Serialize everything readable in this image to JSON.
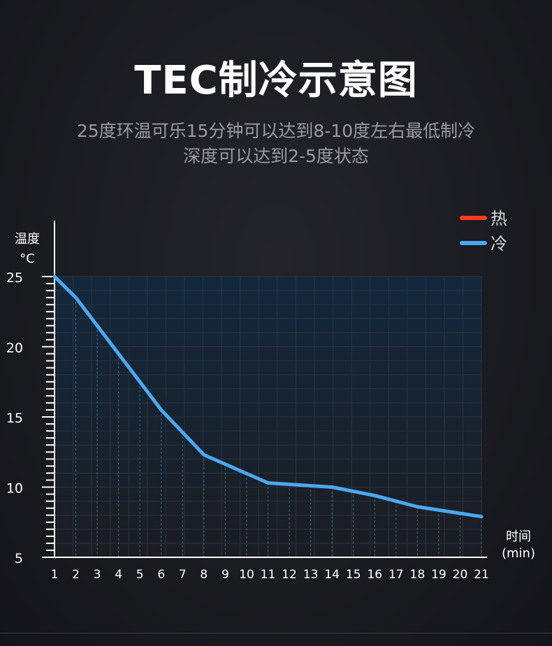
{
  "header": {
    "title": "TEC制冷示意图",
    "subtitle_line1": "25度环温可乐15分钟可以达到8-10度左右最低制冷",
    "subtitle_line2": "深度可以达到2-5度状态"
  },
  "colors": {
    "hot": "#ff3b1f",
    "cold": "#4aa8f0",
    "axis": "#ffffff",
    "grid": "#2c3440",
    "plot_bg_top": "#13283d",
    "plot_bg_bottom": "#1b1d22"
  },
  "chart_data": {
    "type": "line",
    "ylabel_line1": "温度",
    "ylabel_line2": "°C",
    "xlabel_line1": "时间",
    "xlabel_line2": "(min)",
    "ylim": [
      5,
      25
    ],
    "xlim": [
      1,
      21
    ],
    "y_ticks": [
      25,
      20,
      15,
      10,
      5
    ],
    "x_ticks": [
      1,
      2,
      3,
      4,
      5,
      6,
      7,
      8,
      9,
      10,
      11,
      12,
      13,
      14,
      15,
      16,
      17,
      18,
      19,
      20,
      21
    ],
    "legend": [
      {
        "name": "热",
        "color": "#ff3b1f"
      },
      {
        "name": "冷",
        "color": "#4aa8f0"
      }
    ],
    "legend_position": "top-right",
    "series": [
      {
        "name": "冷",
        "x": [
          1,
          2,
          5,
          6,
          8,
          11,
          14,
          16,
          18,
          21
        ],
        "values": [
          25,
          23.5,
          17.5,
          15.5,
          12.3,
          10.3,
          10.0,
          9.4,
          8.6,
          7.9
        ]
      }
    ],
    "grid": true
  }
}
